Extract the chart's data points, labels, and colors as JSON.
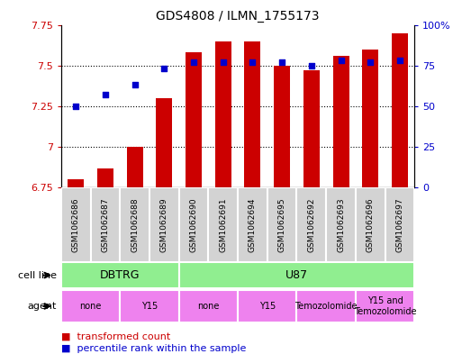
{
  "title": "GDS4808 / ILMN_1755173",
  "samples": [
    "GSM1062686",
    "GSM1062687",
    "GSM1062688",
    "GSM1062689",
    "GSM1062690",
    "GSM1062691",
    "GSM1062694",
    "GSM1062695",
    "GSM1062692",
    "GSM1062693",
    "GSM1062696",
    "GSM1062697"
  ],
  "transformed_count": [
    6.8,
    6.87,
    7.0,
    7.3,
    7.58,
    7.65,
    7.65,
    7.5,
    7.47,
    7.56,
    7.6,
    7.7
  ],
  "percentile_rank": [
    50,
    57,
    63,
    73,
    77,
    77,
    77,
    77,
    75,
    78,
    77,
    78
  ],
  "bar_color": "#cc0000",
  "dot_color": "#0000cc",
  "ylim_left": [
    6.75,
    7.75
  ],
  "ylim_right": [
    0,
    100
  ],
  "yticks_left": [
    6.75,
    7.0,
    7.25,
    7.5,
    7.75
  ],
  "yticks_right": [
    0,
    25,
    50,
    75,
    100
  ],
  "ytick_labels_left": [
    "6.75",
    "7",
    "7.25",
    "7.5",
    "7.75"
  ],
  "ytick_labels_right": [
    "0",
    "25",
    "50",
    "75",
    "100%"
  ],
  "cell_line_groups": [
    {
      "label": "DBTRG",
      "start": 0,
      "end": 4,
      "color": "#90ee90"
    },
    {
      "label": "U87",
      "start": 4,
      "end": 12,
      "color": "#90ee90"
    }
  ],
  "agent_groups": [
    {
      "label": "none",
      "start": 0,
      "end": 2,
      "color": "#ee82ee"
    },
    {
      "label": "Y15",
      "start": 2,
      "end": 4,
      "color": "#ee82ee"
    },
    {
      "label": "none",
      "start": 4,
      "end": 6,
      "color": "#ee82ee"
    },
    {
      "label": "Y15",
      "start": 6,
      "end": 8,
      "color": "#ee82ee"
    },
    {
      "label": "Temozolomide",
      "start": 8,
      "end": 10,
      "color": "#ee82ee"
    },
    {
      "label": "Y15 and\nTemozolomide",
      "start": 10,
      "end": 12,
      "color": "#ee82ee"
    }
  ],
  "legend_bar_label": "transformed count",
  "legend_dot_label": "percentile rank within the sample",
  "cell_line_label": "cell line",
  "agent_label": "agent",
  "sample_box_color": "#d3d3d3",
  "plot_bg_color": "#ffffff"
}
